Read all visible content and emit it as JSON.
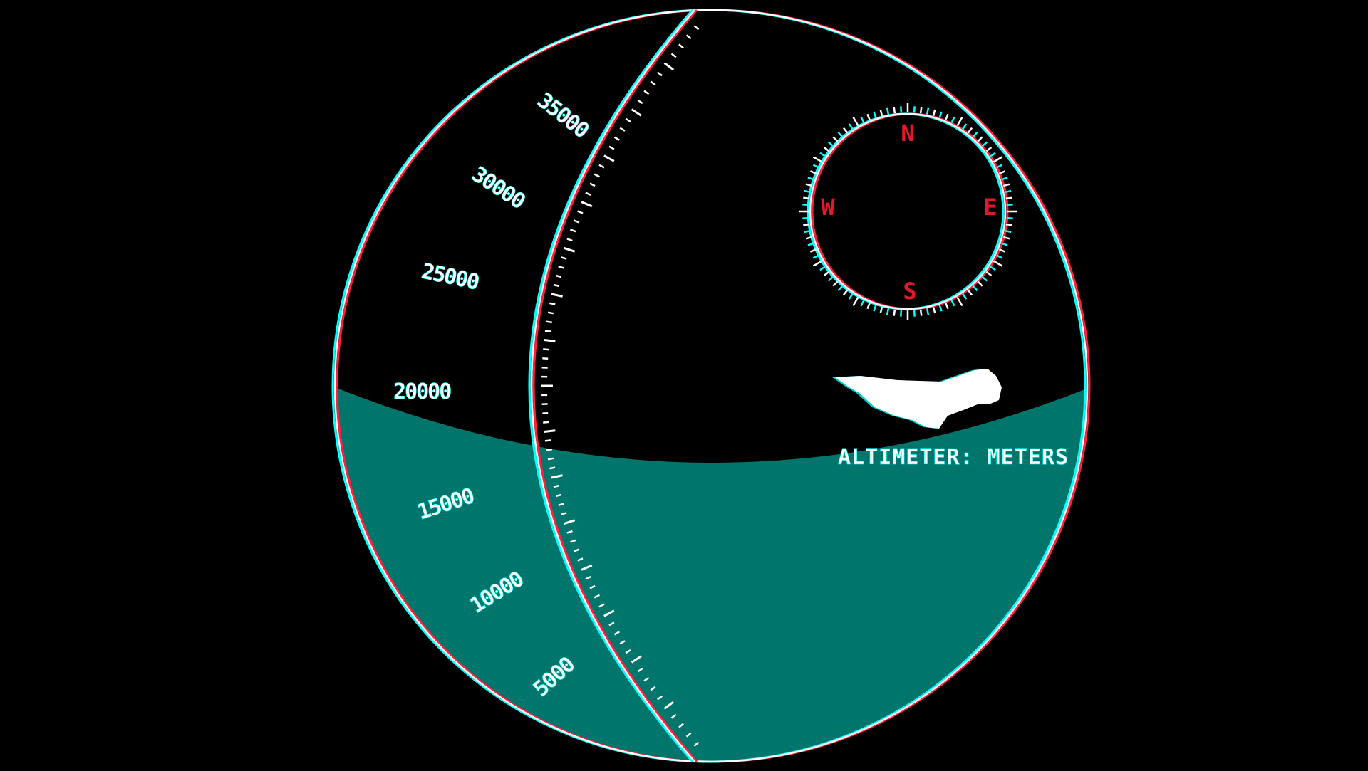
{
  "altimeter": {
    "scale_labels": [
      "35000",
      "30000",
      "25000",
      "20000",
      "15000",
      "10000",
      "5000"
    ],
    "caption": "ALTIMETER: METERS"
  },
  "compass": {
    "north": "N",
    "east": "E",
    "south": "S",
    "west": "W"
  },
  "colors": {
    "background": "#000000",
    "outline": "#ffffff",
    "chroma_cyan": "#00ffff",
    "chroma_red": "#ff2040",
    "ocean": "#00756b",
    "compass_letters": "#e3182c"
  },
  "icons": {
    "aircraft": "shuttle-silhouette-icon"
  }
}
